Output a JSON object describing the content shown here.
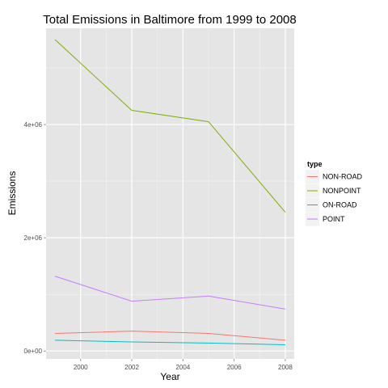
{
  "chart_data": {
    "type": "line",
    "title": "Total Emissions in Baltimore from 1999 to 2008",
    "xlabel": "Year",
    "ylabel": "Emissions",
    "x": [
      1999,
      2002,
      2005,
      2008
    ],
    "xlim": [
      1998.65,
      2008.35
    ],
    "ylim": [
      -140000,
      5700000
    ],
    "x_ticks": [
      2000,
      2002,
      2004,
      2006,
      2008
    ],
    "x_tick_labels": [
      "2000",
      "2002",
      "2004",
      "2006",
      "2008"
    ],
    "y_ticks": [
      0,
      2000000,
      4000000
    ],
    "y_tick_labels": [
      "0e+00",
      "2e+06",
      "4e+06"
    ],
    "grid": true,
    "legend": {
      "title": "type",
      "position": "right"
    },
    "series": [
      {
        "name": "NON-ROAD",
        "color": "#F8766D",
        "values": [
          310000,
          350000,
          310000,
          190000
        ]
      },
      {
        "name": "NONPOINT",
        "color": "#7CAE00",
        "values": [
          5500000,
          4250000,
          4050000,
          2450000
        ]
      },
      {
        "name": "ON-ROAD",
        "color": "#00BFC4",
        "values": [
          190000,
          160000,
          140000,
          110000
        ]
      },
      {
        "name": "POINT",
        "color": "#C77CFF",
        "values": [
          1320000,
          880000,
          970000,
          740000
        ]
      }
    ]
  }
}
